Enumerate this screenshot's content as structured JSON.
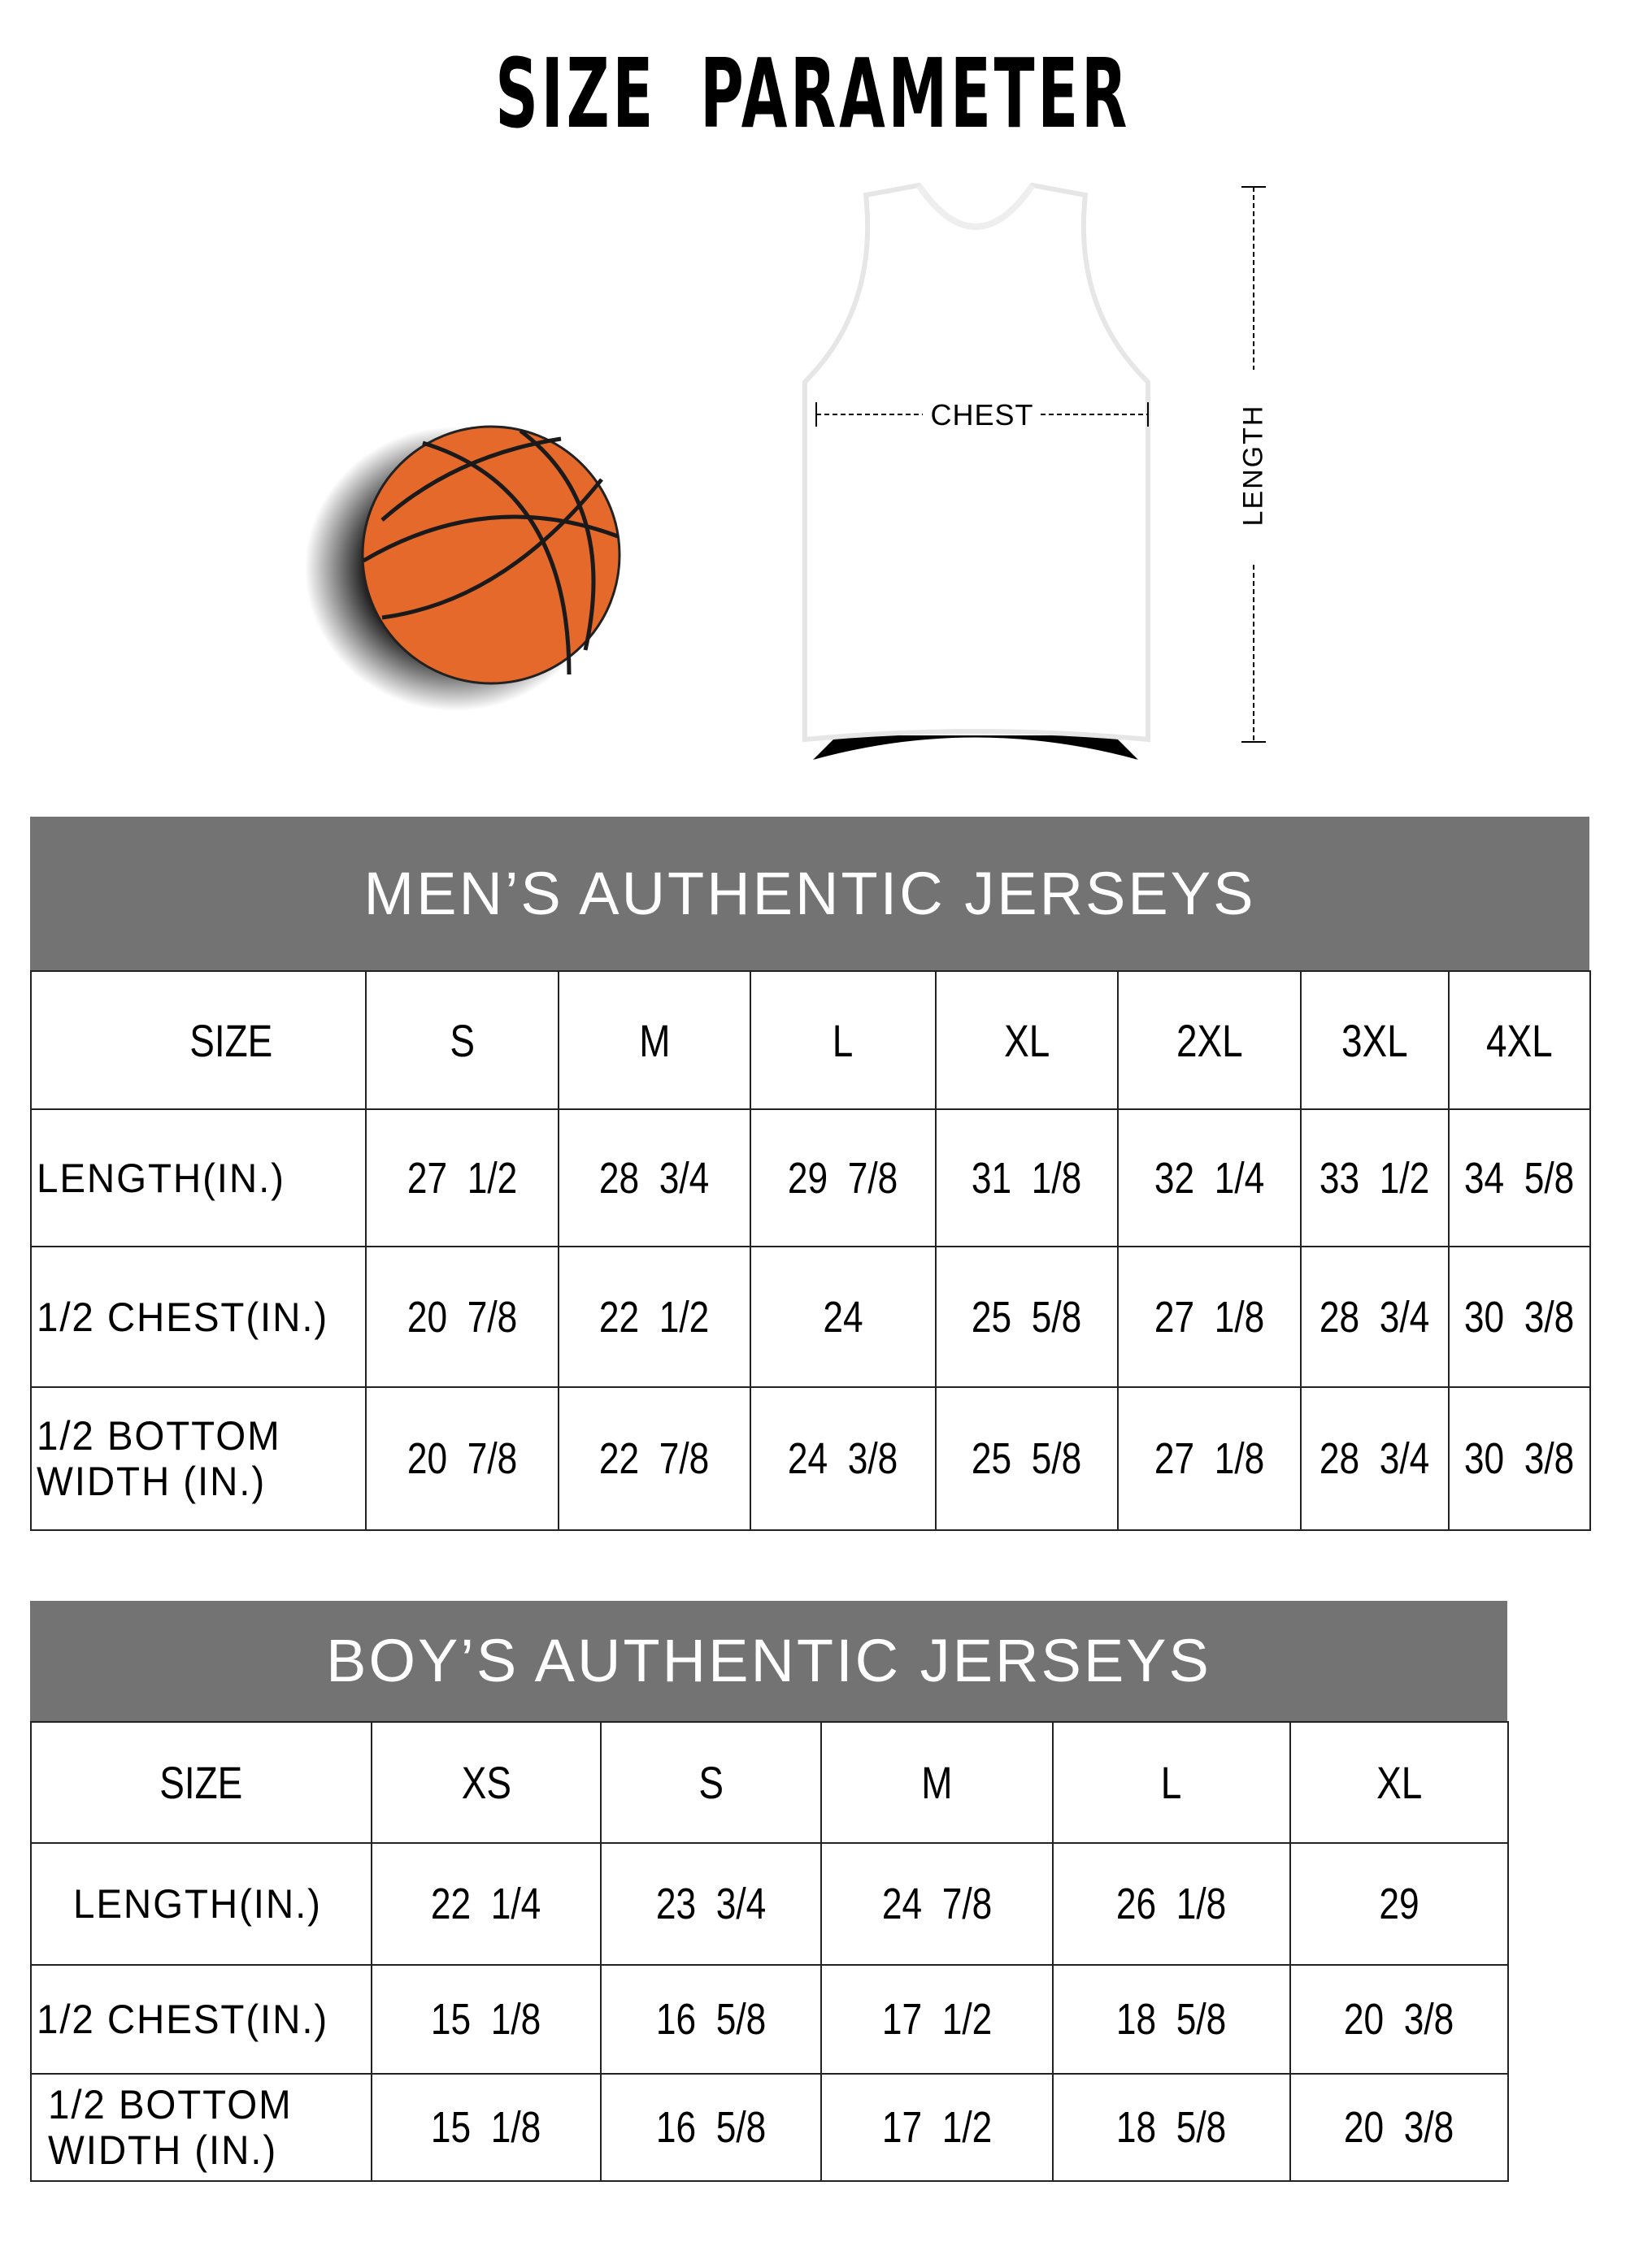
{
  "page_title": "SIZE PARAMETER",
  "diagram": {
    "chest_label": "CHEST",
    "length_label": "LENGTH",
    "ball_color": "#e4692a"
  },
  "mens": {
    "title": "MEN’S AUTHENTIC JERSEYS",
    "header": [
      "SIZE",
      "S",
      "M",
      "L",
      "XL",
      "2XL",
      "3XL",
      "4XL"
    ],
    "rows": [
      [
        "LENGTH(IN.)",
        "27  1/2",
        "28  3/4",
        "29  7/8",
        "31  1/8",
        "32  1/4",
        "33  1/2",
        "34  5/8"
      ],
      [
        "1/2 CHEST(IN.)",
        "20  7/8",
        "22  1/2",
        "24",
        "25  5/8",
        "27  1/8",
        "28  3/4",
        "30  3/8"
      ],
      [
        "1/2 BOTTOM WIDTH  (IN.)",
        "20  7/8",
        "22  7/8",
        "24  3/8",
        "25  5/8",
        "27  1/8",
        "28  3/4",
        "30  3/8"
      ]
    ]
  },
  "boys": {
    "title": "BOY’S AUTHENTIC JERSEYS",
    "header": [
      "SIZE",
      "XS",
      "S",
      "M",
      "L",
      "XL"
    ],
    "rows": [
      [
        "LENGTH(IN.)",
        "22  1/4",
        "23  3/4",
        "24  7/8",
        "26  1/8",
        "29"
      ],
      [
        "1/2 CHEST(IN.)",
        "15  1/8",
        "16  5/8",
        "17  1/2",
        "18  5/8",
        "20  3/8"
      ],
      [
        "1/2 BOTTOM WIDTH  (IN.)",
        "15  1/8",
        "16  5/8",
        "17  1/2",
        "18  5/8",
        "20  3/8"
      ]
    ]
  },
  "colors": {
    "banner": "#737373",
    "banner_text": "#ffffff"
  }
}
